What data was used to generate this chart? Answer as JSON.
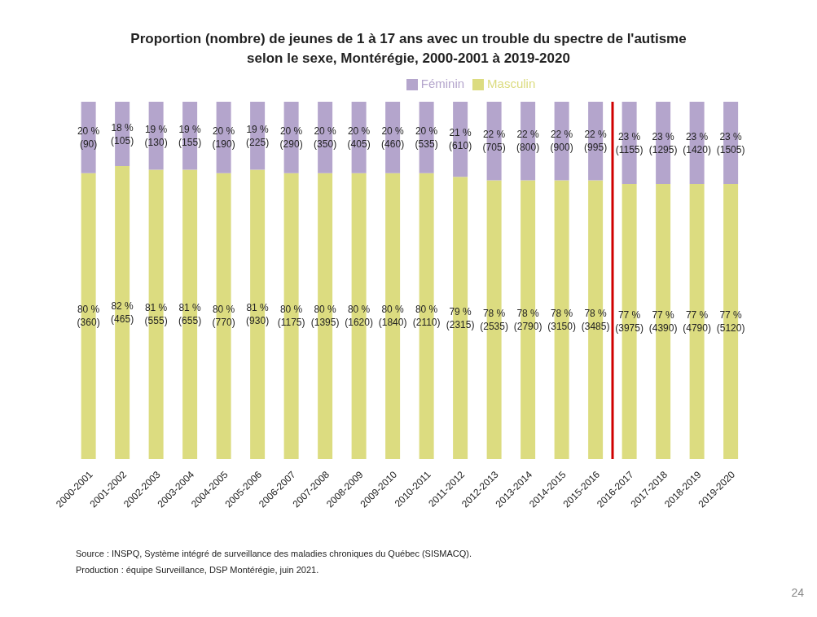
{
  "chart_data": {
    "type": "bar",
    "stacked": true,
    "title": "Proportion (nombre) de jeunes de 1 à 17 ans avec un trouble du spectre de l'autisme\nselon le sexe, Montérégie, 2000-2001 à 2019-2020",
    "categories": [
      "2000-2001",
      "2001-2002",
      "2002-2003",
      "2003-2004",
      "2004-2005",
      "2005-2006",
      "2006-2007",
      "2007-2008",
      "2008-2009",
      "2009-2010",
      "2010-2011",
      "2011-2012",
      "2012-2013",
      "2013-2014",
      "2014-2015",
      "2015-2016",
      "2016-2017",
      "2017-2018",
      "2018-2019",
      "2019-2020"
    ],
    "series": [
      {
        "name": "Masculin",
        "color": "#dcdc80",
        "values": [
          80,
          82,
          81,
          81,
          80,
          81,
          80,
          80,
          80,
          80,
          80,
          79,
          78,
          78,
          78,
          78,
          77,
          77,
          77,
          77
        ],
        "value_labels": [
          "80 %\n(360)",
          "82 %\n(465)",
          "81 %\n(555)",
          "81 %\n(655)",
          "80 %\n(770)",
          "81 %\n(930)",
          "80 %\n(1175)",
          "80 %\n(1395)",
          "80 %\n(1620)",
          "80 %\n(1840)",
          "80 %\n(2110)",
          "79 %\n(2315)",
          "78 %\n(2535)",
          "78 %\n(2790)",
          "78 %\n(3150)",
          "78 %\n(3485)",
          "77 %\n(3975)",
          "77 %\n(4390)",
          "77 %\n(4790)",
          "77 %\n(5120)"
        ]
      },
      {
        "name": "Féminin",
        "color": "#b4a5cc",
        "values": [
          20,
          18,
          19,
          19,
          20,
          19,
          20,
          20,
          20,
          20,
          20,
          21,
          22,
          22,
          22,
          22,
          23,
          23,
          23,
          23
        ],
        "value_labels": [
          "20 %\n(90)",
          "18 %\n(105)",
          "19 %\n(130)",
          "19 %\n(155)",
          "20 %\n(190)",
          "19 %\n(225)",
          "20 %\n(290)",
          "20 %\n(350)",
          "20 %\n(405)",
          "20 %\n(460)",
          "20 %\n(535)",
          "21 %\n(610)",
          "22 %\n(705)",
          "22 %\n(800)",
          "22 %\n(900)",
          "22 %\n(995)",
          "23 %\n(1155)",
          "23 %\n(1295)",
          "23 %\n(1420)",
          "23 %\n(1505)"
        ]
      }
    ],
    "ref_lines": [
      {
        "axis": "x",
        "value": "2016-2017",
        "color": "#d00000"
      }
    ],
    "legend": "top",
    "grid": false,
    "annotations": [
      "Source : INSPQ, Système intégré de surveillance des maladies chroniques du Québec (SISMACQ).",
      "Production : équipe Surveillance, DSP Montérégie, juin 2021.",
      "24"
    ]
  }
}
